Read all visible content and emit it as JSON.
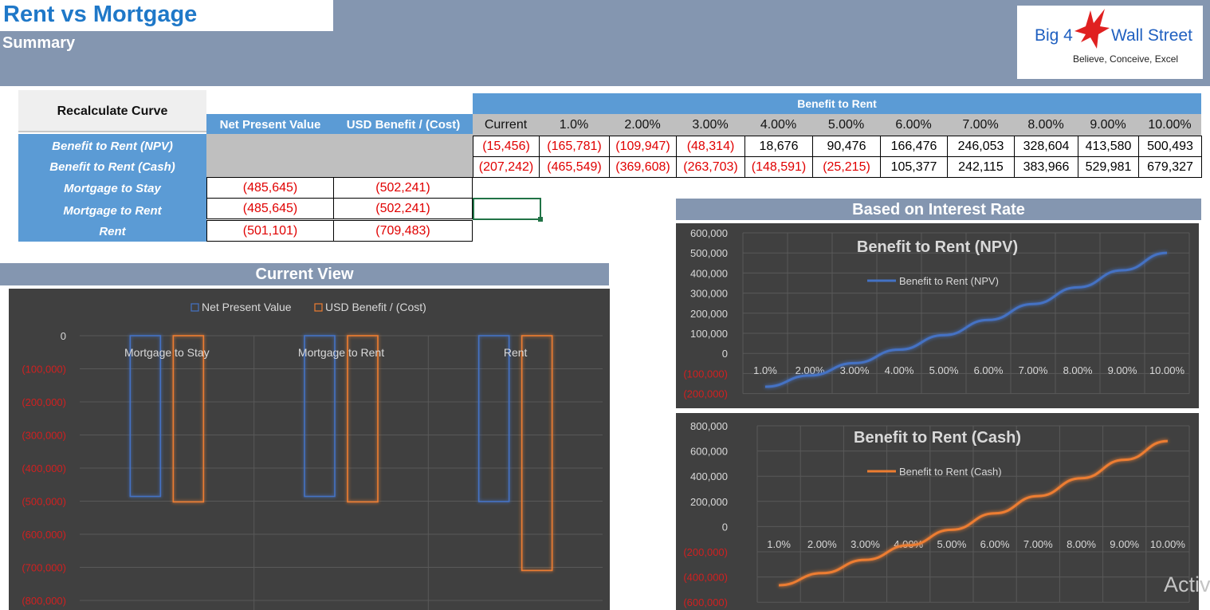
{
  "header": {
    "title": "Rent vs Mortgage",
    "subtitle": "Summary"
  },
  "logo": {
    "brand_left": "Big 4",
    "brand_right": "Wall Street",
    "tagline": "Believe, Conceive, Excel"
  },
  "summary_table": {
    "recalc_button": "Recalculate Curve",
    "col_headers": [
      "Net Present Value",
      "USD Benefit / (Cost)"
    ],
    "row_labels": [
      "Benefit to Rent (NPV)",
      "Benefit to Rent (Cash)",
      "Mortgage to Stay",
      "Mortgage to Rent",
      "Rent"
    ],
    "rows": [
      {
        "npv": "(485,645)",
        "usd": "(502,241)"
      },
      {
        "npv": "(485,645)",
        "usd": "(502,241)"
      },
      {
        "npv": "(501,101)",
        "usd": "(709,483)"
      }
    ]
  },
  "rate_table": {
    "title": "Benefit to Rent",
    "headers": [
      "Current",
      "1.0%",
      "2.00%",
      "3.00%",
      "4.00%",
      "5.00%",
      "6.00%",
      "7.00%",
      "8.00%",
      "9.00%",
      "10.00%"
    ],
    "npv_row": [
      "(15,456)",
      "(165,781)",
      "(109,947)",
      "(48,314)",
      "18,676",
      "90,476",
      "166,476",
      "246,053",
      "328,604",
      "413,580",
      "500,493"
    ],
    "cash_row": [
      "(207,242)",
      "(465,549)",
      "(369,608)",
      "(263,703)",
      "(148,591)",
      "(25,215)",
      "105,377",
      "242,115",
      "383,966",
      "529,981",
      "679,327"
    ]
  },
  "sections": {
    "current_view": "Current View",
    "interest_rate": "Based on Interest Rate"
  },
  "colors": {
    "accent_blue": "#5b9bd5",
    "header_band": "#8496b0",
    "negative_red": "#e00000",
    "chart_bg": "#404040",
    "series_blue": "#4472c4",
    "series_orange": "#ed7d31"
  },
  "watermark": "Activ",
  "chart_data": [
    {
      "type": "bar",
      "categories": [
        "Mortgage to Stay",
        "Mortgage to Rent",
        "Rent"
      ],
      "series": [
        {
          "name": "Net Present Value",
          "values": [
            -485645,
            -485645,
            -501101
          ]
        },
        {
          "name": "USD Benefit / (Cost)",
          "values": [
            -502241,
            -502241,
            -709483
          ]
        }
      ],
      "yticks": [
        "0",
        "(100,000)",
        "(200,000)",
        "(300,000)",
        "(400,000)",
        "(500,000)",
        "(600,000)",
        "(700,000)",
        "(800,000)"
      ],
      "ylim": [
        -800000,
        0
      ],
      "grid": true,
      "legend": "top"
    },
    {
      "type": "line",
      "title": "Benefit to Rent (NPV)",
      "categories": [
        "1.0%",
        "2.00%",
        "3.00%",
        "4.00%",
        "5.00%",
        "6.00%",
        "7.00%",
        "8.00%",
        "9.00%",
        "10.00%"
      ],
      "series": [
        {
          "name": "Benefit to Rent (NPV)",
          "values": [
            -165781,
            -109947,
            -48314,
            18676,
            90476,
            166476,
            246053,
            328604,
            413580,
            500493
          ]
        }
      ],
      "yticks": [
        "600,000",
        "500,000",
        "400,000",
        "300,000",
        "200,000",
        "100,000",
        "0",
        "(100,000)",
        "(200,000)"
      ],
      "ylim": [
        -200000,
        600000
      ],
      "grid": true,
      "legend": "top"
    },
    {
      "type": "line",
      "title": "Benefit to Rent (Cash)",
      "categories": [
        "1.0%",
        "2.00%",
        "3.00%",
        "4.00%",
        "5.00%",
        "6.00%",
        "7.00%",
        "8.00%",
        "9.00%",
        "10.00%"
      ],
      "series": [
        {
          "name": "Benefit to Rent (Cash)",
          "values": [
            -465549,
            -369608,
            -263703,
            -148591,
            -25215,
            105377,
            242115,
            383966,
            529981,
            679327
          ]
        }
      ],
      "yticks": [
        "800,000",
        "600,000",
        "400,000",
        "200,000",
        "0",
        "(200,000)",
        "(400,000)",
        "(600,000)"
      ],
      "ylim": [
        -600000,
        800000
      ],
      "grid": true,
      "legend": "top"
    }
  ]
}
